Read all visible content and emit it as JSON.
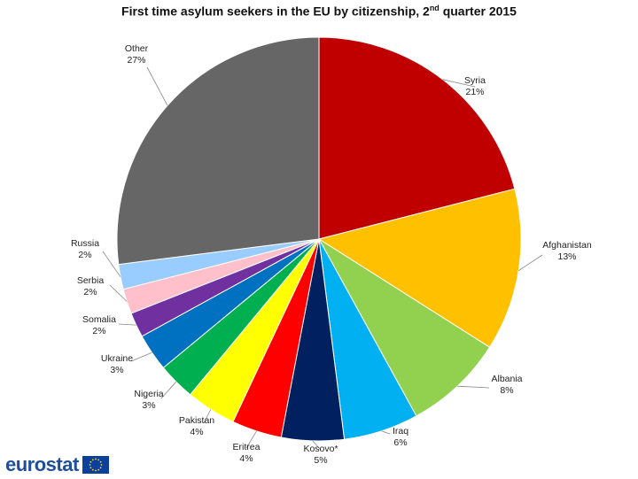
{
  "chart_data": {
    "type": "pie",
    "title_main": "First time asylum seekers in the EU by citizenship, 2",
    "title_sup": "nd",
    "title_end": " quarter 2015",
    "slices": [
      {
        "label": "Syria",
        "value": 21,
        "pct_label": "21%",
        "color": "#c00000"
      },
      {
        "label": "Afghanistan",
        "value": 13,
        "pct_label": "13%",
        "color": "#ffc000"
      },
      {
        "label": "Albania",
        "value": 8,
        "pct_label": "8%",
        "color": "#92d050"
      },
      {
        "label": "Iraq",
        "value": 6,
        "pct_label": "6%",
        "color": "#00b0f0"
      },
      {
        "label": "Kosovo*",
        "value": 5,
        "pct_label": "5%",
        "color": "#002060"
      },
      {
        "label": "Eritrea",
        "value": 4,
        "pct_label": "4%",
        "color": "#ff0000"
      },
      {
        "label": "Pakistan",
        "value": 4,
        "pct_label": "4%",
        "color": "#ffff00"
      },
      {
        "label": "Nigeria",
        "value": 3,
        "pct_label": "3%",
        "color": "#00b050"
      },
      {
        "label": "Ukraine",
        "value": 3,
        "pct_label": "3%",
        "color": "#0070c0"
      },
      {
        "label": "Somalia",
        "value": 2,
        "pct_label": "2%",
        "color": "#7030a0"
      },
      {
        "label": "Serbia",
        "value": 2,
        "pct_label": "2%",
        "color": "#ffc0cb"
      },
      {
        "label": "Russia",
        "value": 2,
        "pct_label": "2%",
        "color": "#99ccff"
      },
      {
        "label": "Other",
        "value": 27,
        "pct_label": "27%",
        "color": "#666666"
      }
    ]
  },
  "branding": {
    "logo_text": "eurostat",
    "flag_color": "#0d3f9c",
    "star_color": "#ffdd00"
  }
}
